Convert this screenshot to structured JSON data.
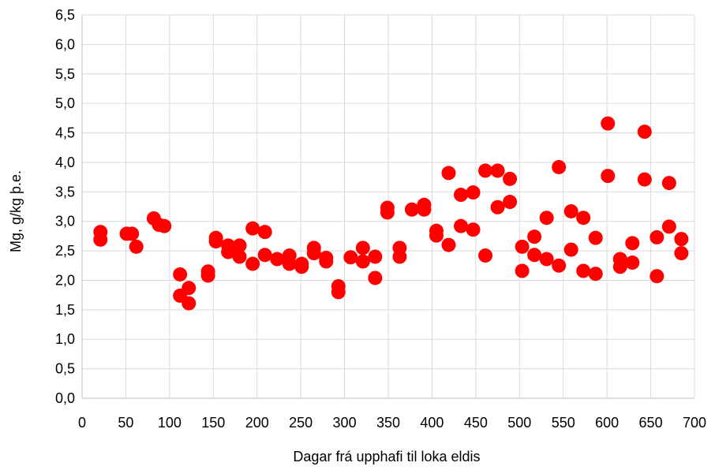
{
  "chart_data": {
    "type": "scatter",
    "title": "",
    "xlabel": "Dagar frá upphafi til loka eldis",
    "ylabel": "Mg, g/kg þ.e.",
    "xlim": [
      0,
      700
    ],
    "ylim": [
      0,
      6.5
    ],
    "x_ticks": [
      0,
      50,
      100,
      150,
      200,
      250,
      300,
      350,
      400,
      450,
      500,
      550,
      600,
      650,
      700
    ],
    "x_tick_labels": [
      "0",
      "50",
      "100",
      "150",
      "200",
      "250",
      "300",
      "350",
      "400",
      "450",
      "500",
      "550",
      "600",
      "650",
      "700"
    ],
    "y_ticks": [
      0,
      0.5,
      1,
      1.5,
      2,
      2.5,
      3,
      3.5,
      4,
      4.5,
      5,
      5.5,
      6,
      6.5
    ],
    "y_tick_labels": [
      "0,0",
      "0,5",
      "1,0",
      "1,5",
      "2,0",
      "2,5",
      "3,0",
      "3,5",
      "4,0",
      "4,5",
      "5,0",
      "5,5",
      "6,0",
      "6,5"
    ],
    "grid": true,
    "legend": "none",
    "marker_color": "#ff0000",
    "series": [
      {
        "points": [
          [
            21,
            2.82
          ],
          [
            21,
            2.69
          ],
          [
            51,
            2.79
          ],
          [
            57,
            2.79
          ],
          [
            62,
            2.57
          ],
          [
            82,
            3.05
          ],
          [
            88,
            2.94
          ],
          [
            94,
            2.92
          ],
          [
            112,
            1.74
          ],
          [
            112,
            2.1
          ],
          [
            122,
            1.87
          ],
          [
            122,
            1.61
          ],
          [
            144,
            2.15
          ],
          [
            144,
            2.08
          ],
          [
            153,
            2.72
          ],
          [
            153,
            2.66
          ],
          [
            167,
            2.48
          ],
          [
            167,
            2.59
          ],
          [
            180,
            2.59
          ],
          [
            180,
            2.4
          ],
          [
            195,
            2.28
          ],
          [
            195,
            2.88
          ],
          [
            209,
            2.82
          ],
          [
            209,
            2.43
          ],
          [
            223,
            2.36
          ],
          [
            237,
            2.42
          ],
          [
            237,
            2.28
          ],
          [
            251,
            2.28
          ],
          [
            251,
            2.23
          ],
          [
            265,
            2.55
          ],
          [
            265,
            2.46
          ],
          [
            279,
            2.38
          ],
          [
            279,
            2.32
          ],
          [
            293,
            1.9
          ],
          [
            293,
            1.8
          ],
          [
            307,
            2.39
          ],
          [
            321,
            2.55
          ],
          [
            321,
            2.32
          ],
          [
            335,
            2.4
          ],
          [
            335,
            2.04
          ],
          [
            349,
            3.23
          ],
          [
            349,
            3.15
          ],
          [
            363,
            2.55
          ],
          [
            363,
            2.4
          ],
          [
            377,
            3.2
          ],
          [
            391,
            3.28
          ],
          [
            391,
            3.2
          ],
          [
            405,
            2.84
          ],
          [
            405,
            2.76
          ],
          [
            419,
            3.82
          ],
          [
            419,
            2.6
          ],
          [
            433,
            3.45
          ],
          [
            433,
            2.92
          ],
          [
            447,
            3.49
          ],
          [
            447,
            2.86
          ],
          [
            461,
            3.86
          ],
          [
            461,
            2.42
          ],
          [
            475,
            3.86
          ],
          [
            475,
            3.24
          ],
          [
            489,
            3.72
          ],
          [
            489,
            3.33
          ],
          [
            503,
            2.57
          ],
          [
            503,
            2.16
          ],
          [
            517,
            2.74
          ],
          [
            517,
            2.43
          ],
          [
            531,
            3.06
          ],
          [
            531,
            2.36
          ],
          [
            545,
            3.92
          ],
          [
            545,
            2.25
          ],
          [
            559,
            3.17
          ],
          [
            559,
            2.52
          ],
          [
            573,
            3.06
          ],
          [
            573,
            2.16
          ],
          [
            587,
            2.72
          ],
          [
            587,
            2.11
          ],
          [
            601,
            4.66
          ],
          [
            601,
            3.77
          ],
          [
            615,
            2.36
          ],
          [
            615,
            2.23
          ],
          [
            629,
            2.63
          ],
          [
            629,
            2.3
          ],
          [
            643,
            4.52
          ],
          [
            643,
            3.71
          ],
          [
            657,
            2.73
          ],
          [
            657,
            2.07
          ],
          [
            671,
            3.65
          ],
          [
            671,
            2.91
          ],
          [
            685,
            2.7
          ],
          [
            685,
            2.46
          ]
        ]
      }
    ]
  }
}
